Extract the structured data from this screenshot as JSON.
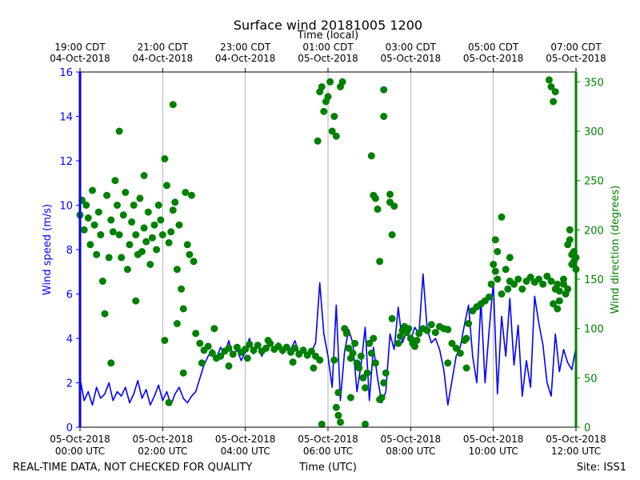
{
  "chart_data": {
    "type": "line+scatter",
    "title": "Surface wind 20181005 1200",
    "top_axis_label": "Time (local)",
    "xlabel": "Time (UTC)",
    "ylabel_left": "Wind speed (m/s)",
    "ylabel_right": "Wind direction (degrees)",
    "footer_left": "REAL-TIME DATA, NOT CHECKED FOR QUALITY",
    "footer_right": "Site: ISS1",
    "x_range_hours": [
      0,
      12
    ],
    "ylim_left": [
      0,
      16
    ],
    "ylim_right": [
      0,
      360
    ],
    "left_ticks": [
      "0",
      "2",
      "4",
      "6",
      "8",
      "10",
      "12",
      "14",
      "16"
    ],
    "right_ticks": [
      "0",
      "50",
      "100",
      "150",
      "200",
      "250",
      "300",
      "350"
    ],
    "bottom_ticks": [
      {
        "line1": "05-Oct-2018",
        "line2": "00:00 UTC"
      },
      {
        "line1": "05-Oct-2018",
        "line2": "02:00 UTC"
      },
      {
        "line1": "05-Oct-2018",
        "line2": "04:00 UTC"
      },
      {
        "line1": "05-Oct-2018",
        "line2": "06:00 UTC"
      },
      {
        "line1": "05-Oct-2018",
        "line2": "08:00 UTC"
      },
      {
        "line1": "05-Oct-2018",
        "line2": "10:00 UTC"
      },
      {
        "line1": "05-Oct-2018",
        "line2": "12:00 UTC"
      }
    ],
    "top_ticks": [
      {
        "line1": "19:00 CDT",
        "line2": "04-Oct-2018"
      },
      {
        "line1": "21:00 CDT",
        "line2": "04-Oct-2018"
      },
      {
        "line1": "23:00 CDT",
        "line2": "04-Oct-2018"
      },
      {
        "line1": "01:00 CDT",
        "line2": "05-Oct-2018"
      },
      {
        "line1": "03:00 CDT",
        "line2": "05-Oct-2018"
      },
      {
        "line1": "05:00 CDT",
        "line2": "05-Oct-2018"
      },
      {
        "line1": "07:00 CDT",
        "line2": "05-Oct-2018"
      }
    ],
    "grid": "vertical",
    "colors": {
      "speed": "#0000ff",
      "direction": "#008000",
      "grid": "#b0b0b0",
      "axis": "#000000"
    },
    "series": [
      {
        "name": "Wind speed (m/s)",
        "axis": "left",
        "kind": "line",
        "x": [
          0.0,
          0.1,
          0.2,
          0.3,
          0.4,
          0.5,
          0.6,
          0.7,
          0.8,
          0.9,
          1.0,
          1.1,
          1.2,
          1.3,
          1.4,
          1.5,
          1.6,
          1.7,
          1.8,
          1.9,
          2.0,
          2.1,
          2.2,
          2.3,
          2.4,
          2.5,
          2.6,
          2.7,
          2.8,
          2.9,
          3.0,
          3.1,
          3.2,
          3.3,
          3.4,
          3.5,
          3.6,
          3.7,
          3.8,
          3.9,
          4.0,
          4.1,
          4.2,
          4.3,
          4.4,
          4.5,
          4.6,
          4.7,
          4.8,
          4.9,
          5.0,
          5.1,
          5.2,
          5.3,
          5.4,
          5.5,
          5.6,
          5.7,
          5.8,
          5.9,
          6.0,
          6.1,
          6.2,
          6.3,
          6.4,
          6.5,
          6.6,
          6.7,
          6.8,
          6.9,
          7.0,
          7.1,
          7.2,
          7.3,
          7.4,
          7.5,
          7.6,
          7.7,
          7.8,
          7.9,
          8.0,
          8.1,
          8.2,
          8.3,
          8.4,
          8.5,
          8.6,
          8.7,
          8.8,
          8.9,
          9.0,
          9.1,
          9.2,
          9.3,
          9.4,
          9.5,
          9.6,
          9.7,
          9.8,
          9.9,
          10.0,
          10.1,
          10.2,
          10.3,
          10.4,
          10.5,
          10.6,
          10.7,
          10.8,
          10.9,
          11.0,
          11.1,
          11.2,
          11.3,
          11.4,
          11.5,
          11.6,
          11.7,
          11.8,
          11.9,
          12.0
        ],
        "values": [
          2.2,
          1.2,
          1.6,
          1.0,
          1.8,
          1.3,
          1.5,
          2.0,
          1.2,
          1.6,
          1.4,
          1.8,
          1.1,
          1.5,
          2.1,
          1.3,
          1.7,
          1.0,
          1.4,
          1.9,
          1.2,
          1.6,
          1.0,
          1.5,
          1.8,
          1.3,
          1.1,
          1.4,
          1.6,
          2.2,
          2.8,
          3.2,
          3.5,
          3.1,
          3.6,
          3.3,
          3.9,
          3.2,
          3.5,
          3.0,
          3.4,
          4.0,
          3.3,
          3.7,
          3.2,
          3.6,
          3.9,
          3.4,
          3.8,
          3.3,
          3.7,
          3.5,
          3.9,
          3.3,
          3.6,
          3.1,
          3.4,
          3.8,
          6.5,
          4.2,
          3.2,
          1.8,
          5.5,
          1.2,
          3.4,
          4.4,
          3.8,
          1.6,
          2.8,
          4.5,
          1.2,
          3.6,
          2.2,
          1.1,
          1.6,
          4.2,
          3.5,
          5.4,
          3.8,
          4.3,
          3.9,
          4.5,
          4.2,
          6.9,
          4.4,
          3.8,
          4.0,
          3.5,
          2.6,
          1.0,
          2.1,
          3.2,
          3.6,
          4.6,
          5.5,
          3.2,
          2.0,
          5.7,
          2.0,
          4.4,
          6.5,
          1.5,
          5.0,
          3.2,
          5.8,
          2.8,
          4.6,
          1.4,
          3.0,
          1.8,
          5.9,
          4.7,
          3.7,
          2.0,
          1.4,
          4.2,
          2.5,
          3.5,
          2.9,
          2.6,
          3.6
        ]
      },
      {
        "name": "Wind direction (degrees)",
        "axis": "right",
        "kind": "scatter",
        "points": [
          [
            0.0,
            215
          ],
          [
            0.05,
            230
          ],
          [
            0.1,
            200
          ],
          [
            0.15,
            225
          ],
          [
            0.2,
            212
          ],
          [
            0.25,
            185
          ],
          [
            0.3,
            240
          ],
          [
            0.35,
            205
          ],
          [
            0.4,
            175
          ],
          [
            0.45,
            218
          ],
          [
            0.5,
            195
          ],
          [
            0.55,
            148
          ],
          [
            0.6,
            115
          ],
          [
            0.65,
            235
          ],
          [
            0.7,
            172
          ],
          [
            0.75,
            210
          ],
          [
            0.8,
            198
          ],
          [
            0.85,
            250
          ],
          [
            0.9,
            225
          ],
          [
            0.95,
            195
          ],
          [
            1.0,
            172
          ],
          [
            1.05,
            215
          ],
          [
            1.1,
            238
          ],
          [
            1.15,
            160
          ],
          [
            1.2,
            185
          ],
          [
            1.25,
            208
          ],
          [
            1.3,
            225
          ],
          [
            1.35,
            195
          ],
          [
            1.4,
            175
          ],
          [
            1.45,
            232
          ],
          [
            1.5,
            178
          ],
          [
            1.55,
            202
          ],
          [
            1.6,
            188
          ],
          [
            1.65,
            218
          ],
          [
            1.7,
            165
          ],
          [
            1.75,
            192
          ],
          [
            1.8,
            205
          ],
          [
            1.85,
            180
          ],
          [
            1.9,
            225
          ],
          [
            1.95,
            210
          ],
          [
            2.0,
            195
          ],
          [
            2.05,
            272
          ],
          [
            2.1,
            245
          ],
          [
            2.15,
            187
          ],
          [
            2.2,
            198
          ],
          [
            2.25,
            220
          ],
          [
            2.3,
            228
          ],
          [
            2.35,
            160
          ],
          [
            2.4,
            205
          ],
          [
            2.45,
            140
          ],
          [
            2.5,
            120
          ],
          [
            2.55,
            238
          ],
          [
            2.6,
            185
          ],
          [
            2.65,
            175
          ],
          [
            2.7,
            235
          ],
          [
            2.75,
            168
          ],
          [
            0.95,
            300
          ],
          [
            1.55,
            255
          ],
          [
            2.25,
            327
          ],
          [
            0.75,
            65
          ],
          [
            1.35,
            128
          ],
          [
            2.35,
            105
          ],
          [
            2.5,
            55
          ],
          [
            2.15,
            25
          ],
          [
            2.05,
            88
          ],
          [
            2.8,
            95
          ],
          [
            2.9,
            85
          ],
          [
            3.0,
            78
          ],
          [
            3.1,
            82
          ],
          [
            3.2,
            75
          ],
          [
            3.3,
            70
          ],
          [
            3.4,
            72
          ],
          [
            3.5,
            77
          ],
          [
            3.6,
            80
          ],
          [
            3.7,
            74
          ],
          [
            3.8,
            81
          ],
          [
            3.9,
            76
          ],
          [
            4.0,
            79
          ],
          [
            4.1,
            84
          ],
          [
            4.2,
            78
          ],
          [
            4.3,
            83
          ],
          [
            4.4,
            77
          ],
          [
            4.5,
            80
          ],
          [
            4.6,
            85
          ],
          [
            4.7,
            79
          ],
          [
            4.8,
            82
          ],
          [
            4.9,
            78
          ],
          [
            5.0,
            81
          ],
          [
            5.1,
            76
          ],
          [
            5.2,
            80
          ],
          [
            5.3,
            74
          ],
          [
            5.4,
            78
          ],
          [
            5.5,
            73
          ],
          [
            5.6,
            77
          ],
          [
            5.7,
            72
          ],
          [
            5.8,
            68
          ],
          [
            2.95,
            65
          ],
          [
            3.25,
            100
          ],
          [
            3.6,
            62
          ],
          [
            4.05,
            70
          ],
          [
            4.55,
            88
          ],
          [
            5.15,
            66
          ],
          [
            5.65,
            60
          ],
          [
            5.75,
            290
          ],
          [
            5.8,
            340
          ],
          [
            5.85,
            345
          ],
          [
            5.9,
            320
          ],
          [
            5.95,
            330
          ],
          [
            6.0,
            335
          ],
          [
            6.05,
            350
          ],
          [
            6.1,
            300
          ],
          [
            6.15,
            315
          ],
          [
            6.2,
            295
          ],
          [
            6.3,
            345
          ],
          [
            6.35,
            350
          ],
          [
            5.85,
            3
          ],
          [
            6.3,
            5
          ],
          [
            6.25,
            35
          ],
          [
            6.4,
            100
          ],
          [
            6.45,
            95
          ],
          [
            6.5,
            80
          ],
          [
            6.55,
            70
          ],
          [
            6.6,
            75
          ],
          [
            6.65,
            85
          ],
          [
            6.7,
            65
          ],
          [
            6.75,
            60
          ],
          [
            6.8,
            72
          ],
          [
            6.85,
            50
          ],
          [
            6.9,
            40
          ],
          [
            6.95,
            55
          ],
          [
            7.0,
            85
          ],
          [
            7.05,
            75
          ],
          [
            7.1,
            90
          ],
          [
            7.15,
            65
          ],
          [
            6.15,
            68
          ],
          [
            6.2,
            20
          ],
          [
            6.25,
            12
          ],
          [
            6.55,
            30
          ],
          [
            6.9,
            3
          ],
          [
            7.05,
            275
          ],
          [
            7.1,
            235
          ],
          [
            7.15,
            232
          ],
          [
            7.2,
            221
          ],
          [
            7.25,
            168
          ],
          [
            7.35,
            342
          ],
          [
            7.35,
            315
          ],
          [
            7.5,
            236
          ],
          [
            7.5,
            228
          ],
          [
            7.55,
            195
          ],
          [
            7.6,
            224
          ],
          [
            7.7,
            85
          ],
          [
            7.75,
            92
          ],
          [
            7.8,
            98
          ],
          [
            7.85,
            102
          ],
          [
            7.9,
            96
          ],
          [
            7.95,
            100
          ],
          [
            8.0,
            90
          ],
          [
            8.05,
            85
          ],
          [
            8.1,
            82
          ],
          [
            8.2,
            95
          ],
          [
            8.3,
            100
          ],
          [
            8.4,
            98
          ],
          [
            8.5,
            104
          ],
          [
            8.6,
            96
          ],
          [
            8.7,
            102
          ],
          [
            8.8,
            100
          ],
          [
            8.9,
            99
          ],
          [
            9.0,
            85
          ],
          [
            9.1,
            80
          ],
          [
            9.2,
            75
          ],
          [
            9.3,
            88
          ],
          [
            9.35,
            90
          ],
          [
            9.4,
            105
          ],
          [
            9.5,
            118
          ],
          [
            9.6,
            122
          ],
          [
            9.7,
            125
          ],
          [
            9.8,
            128
          ],
          [
            9.9,
            132
          ],
          [
            7.25,
            28
          ],
          [
            7.3,
            30
          ],
          [
            7.35,
            45
          ],
          [
            7.4,
            55
          ],
          [
            8.9,
            65
          ],
          [
            9.35,
            60
          ],
          [
            7.55,
            110
          ],
          [
            8.15,
            88
          ],
          [
            9.95,
            145
          ],
          [
            10.0,
            165
          ],
          [
            10.05,
            190
          ],
          [
            10.1,
            150
          ],
          [
            10.2,
            135
          ],
          [
            10.3,
            160
          ],
          [
            10.35,
            140
          ],
          [
            10.4,
            148
          ],
          [
            10.5,
            145
          ],
          [
            10.6,
            150
          ],
          [
            10.7,
            140
          ],
          [
            10.8,
            148
          ],
          [
            10.9,
            152
          ],
          [
            11.0,
            147
          ],
          [
            11.1,
            150
          ],
          [
            11.2,
            145
          ],
          [
            11.3,
            153
          ],
          [
            11.4,
            148
          ],
          [
            11.45,
            125
          ],
          [
            11.5,
            140
          ],
          [
            11.55,
            145
          ],
          [
            11.6,
            138
          ],
          [
            11.7,
            150
          ],
          [
            11.75,
            135
          ],
          [
            11.8,
            140
          ],
          [
            11.85,
            190
          ],
          [
            11.9,
            175
          ],
          [
            11.95,
            168
          ],
          [
            12.0,
            160
          ],
          [
            10.2,
            213
          ],
          [
            11.35,
            352
          ],
          [
            11.4,
            345
          ],
          [
            11.45,
            330
          ],
          [
            11.5,
            340
          ],
          [
            11.55,
            120
          ],
          [
            11.6,
            128
          ],
          [
            11.7,
            145
          ],
          [
            11.85,
            200
          ],
          [
            11.8,
            185
          ],
          [
            11.95,
            178
          ],
          [
            12.0,
            172
          ],
          [
            11.9,
            165
          ],
          [
            10.05,
            158
          ],
          [
            10.4,
            172
          ],
          [
            10.1,
            178
          ]
        ]
      }
    ]
  }
}
